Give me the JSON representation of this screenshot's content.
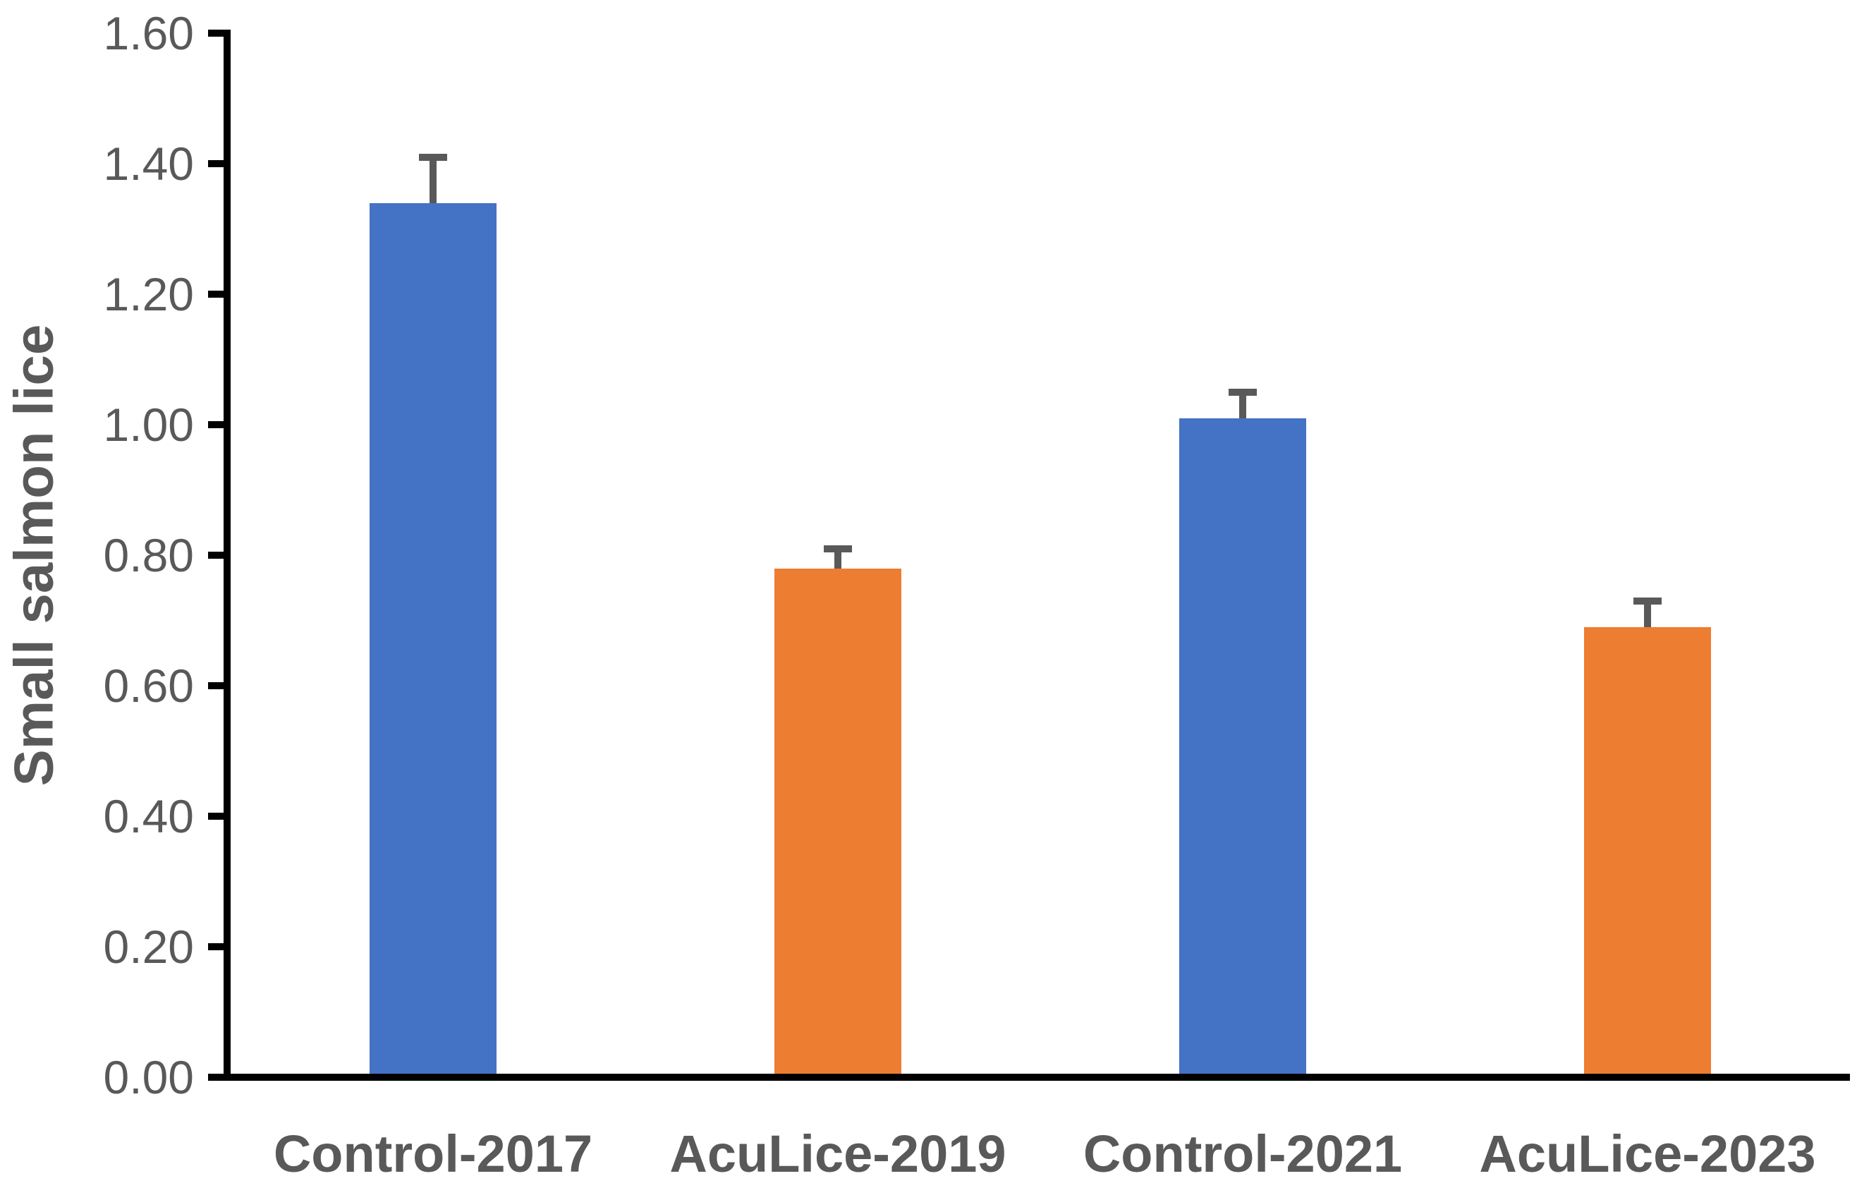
{
  "chart_data": {
    "type": "bar",
    "title": "",
    "xlabel": "",
    "ylabel": "Small salmon lice",
    "categories": [
      "Control-2017",
      "AcuLice-2019",
      "Control-2021",
      "AcuLice-2023"
    ],
    "series": [
      {
        "name": "Small salmon lice",
        "values": [
          1.34,
          0.78,
          1.01,
          0.69
        ],
        "errors_plus": [
          0.07,
          0.03,
          0.04,
          0.04
        ]
      }
    ],
    "bar_colors": [
      "#4472C4",
      "#ED7D31",
      "#4472C4",
      "#ED7D31"
    ],
    "error_bar_color": "#595959",
    "axis_color": "#000000",
    "tick_label_color": "#595959",
    "category_label_color": "#595959",
    "ylim": [
      0.0,
      1.6
    ],
    "ytick_step": 0.2,
    "ytick_labels": [
      "0.00",
      "0.20",
      "0.40",
      "0.60",
      "0.80",
      "1.00",
      "1.20",
      "1.40",
      "1.60"
    ],
    "grid": false,
    "legend_position": "none"
  }
}
